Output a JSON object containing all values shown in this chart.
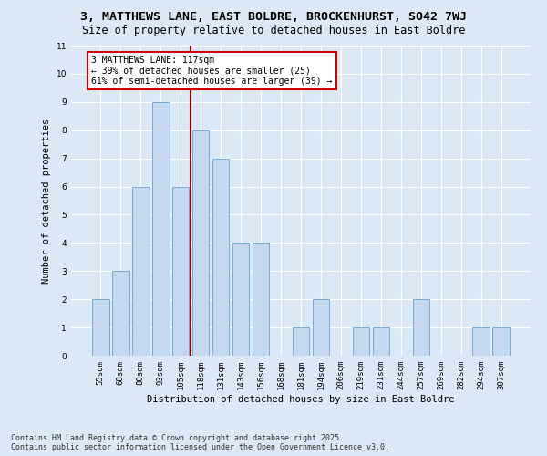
{
  "title": "3, MATTHEWS LANE, EAST BOLDRE, BROCKENHURST, SO42 7WJ",
  "subtitle": "Size of property relative to detached houses in East Boldre",
  "xlabel": "Distribution of detached houses by size in East Boldre",
  "ylabel": "Number of detached properties",
  "categories": [
    "55sqm",
    "68sqm",
    "80sqm",
    "93sqm",
    "105sqm",
    "118sqm",
    "131sqm",
    "143sqm",
    "156sqm",
    "168sqm",
    "181sqm",
    "194sqm",
    "206sqm",
    "219sqm",
    "231sqm",
    "244sqm",
    "257sqm",
    "269sqm",
    "282sqm",
    "294sqm",
    "307sqm"
  ],
  "values": [
    2,
    3,
    6,
    9,
    6,
    8,
    7,
    4,
    4,
    0,
    1,
    2,
    0,
    1,
    1,
    0,
    2,
    0,
    0,
    1,
    1
  ],
  "bar_color": "#c5d8f0",
  "bar_edge_color": "#7aaad4",
  "vline_x": 5,
  "vline_color": "#8b0000",
  "annotation_text": "3 MATTHEWS LANE: 117sqm\n← 39% of detached houses are smaller (25)\n61% of semi-detached houses are larger (39) →",
  "annotation_box_color": "#ffffff",
  "annotation_box_edge": "#cc0000",
  "ylim": [
    0,
    11
  ],
  "yticks": [
    0,
    1,
    2,
    3,
    4,
    5,
    6,
    7,
    8,
    9,
    10,
    11
  ],
  "background_color": "#dce8f5",
  "plot_bg_color": "#dce8f5",
  "grid_color": "#ffffff",
  "footer_line1": "Contains HM Land Registry data © Crown copyright and database right 2025.",
  "footer_line2": "Contains public sector information licensed under the Open Government Licence v3.0.",
  "title_fontsize": 9.5,
  "subtitle_fontsize": 8.5,
  "axis_label_fontsize": 7.5,
  "tick_fontsize": 6.5,
  "annotation_fontsize": 7,
  "footer_fontsize": 6
}
